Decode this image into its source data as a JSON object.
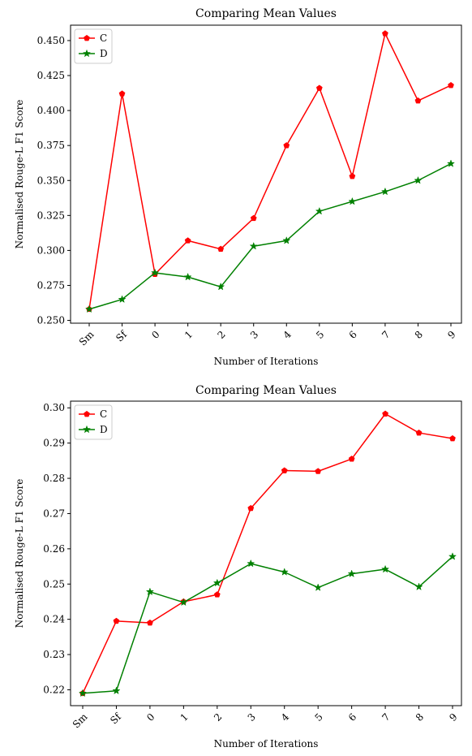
{
  "chart_data": [
    {
      "type": "line",
      "title": "Comparing Mean Values",
      "xlabel": "Number of Iterations",
      "ylabel": "Normalised Rouge-L F1 Score",
      "categories": [
        "Sm",
        "Sf",
        "0",
        "1",
        "2",
        "3",
        "4",
        "5",
        "6",
        "7",
        "8",
        "9"
      ],
      "ylim": [
        0.248,
        0.461
      ],
      "yticks": [
        "0.250",
        "0.275",
        "0.300",
        "0.325",
        "0.350",
        "0.375",
        "0.400",
        "0.425",
        "0.450"
      ],
      "ytick_values": [
        0.25,
        0.275,
        0.3,
        0.325,
        0.35,
        0.375,
        0.4,
        0.425,
        0.45
      ],
      "legend_position": "top-left",
      "grid": false,
      "series": [
        {
          "name": "C",
          "color": "#ff0000",
          "marker": "pentagon",
          "values": [
            0.258,
            0.412,
            0.283,
            0.307,
            0.301,
            0.323,
            0.375,
            0.416,
            0.353,
            0.455,
            0.407,
            0.418
          ]
        },
        {
          "name": "D",
          "color": "#008000",
          "marker": "star",
          "values": [
            0.258,
            0.265,
            0.284,
            0.281,
            0.274,
            0.303,
            0.307,
            0.328,
            0.335,
            0.342,
            0.35,
            0.362
          ]
        }
      ]
    },
    {
      "type": "line",
      "title": "Comparing Mean Values",
      "xlabel": "Number of Iterations",
      "ylabel": "Normalised Rouge-L F1 Score",
      "categories": [
        "Sm",
        "Sf",
        "0",
        "1",
        "2",
        "3",
        "4",
        "5",
        "6",
        "7",
        "8",
        "9"
      ],
      "ylim": [
        0.2155,
        0.3019
      ],
      "yticks": [
        "0.22",
        "0.23",
        "0.24",
        "0.25",
        "0.26",
        "0.27",
        "0.28",
        "0.29",
        "0.30"
      ],
      "ytick_values": [
        0.22,
        0.23,
        0.24,
        0.25,
        0.26,
        0.27,
        0.28,
        0.29,
        0.3
      ],
      "legend_position": "top-left",
      "grid": false,
      "series": [
        {
          "name": "C",
          "color": "#ff0000",
          "marker": "pentagon",
          "values": [
            0.219,
            0.2395,
            0.239,
            0.245,
            0.247,
            0.2715,
            0.2822,
            0.282,
            0.2855,
            0.2983,
            0.2929,
            0.2913
          ]
        },
        {
          "name": "D",
          "color": "#008000",
          "marker": "star",
          "values": [
            0.219,
            0.2197,
            0.2478,
            0.2448,
            0.2503,
            0.2558,
            0.2534,
            0.249,
            0.2529,
            0.2542,
            0.2492,
            0.2578
          ]
        }
      ]
    }
  ]
}
